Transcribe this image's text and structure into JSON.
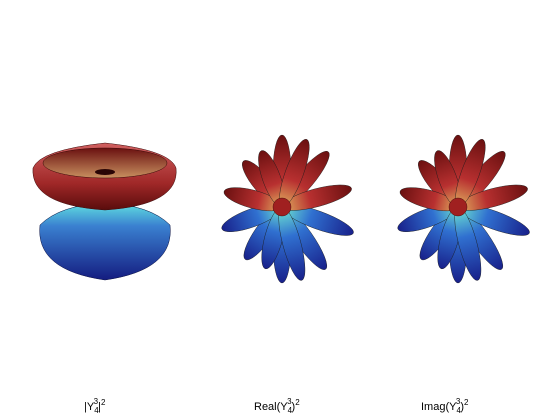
{
  "panels": [
    {
      "prefix": "|Y",
      "sub": "4",
      "sup": "3",
      "suffix": "|",
      "power": "2"
    },
    {
      "prefix": "Real(Y",
      "sub": "4",
      "sup": "3",
      "suffix": ")",
      "power": "2"
    },
    {
      "prefix": "Imag(Y",
      "sub": "4",
      "sup": "3",
      "suffix": ")",
      "power": "2"
    }
  ]
}
